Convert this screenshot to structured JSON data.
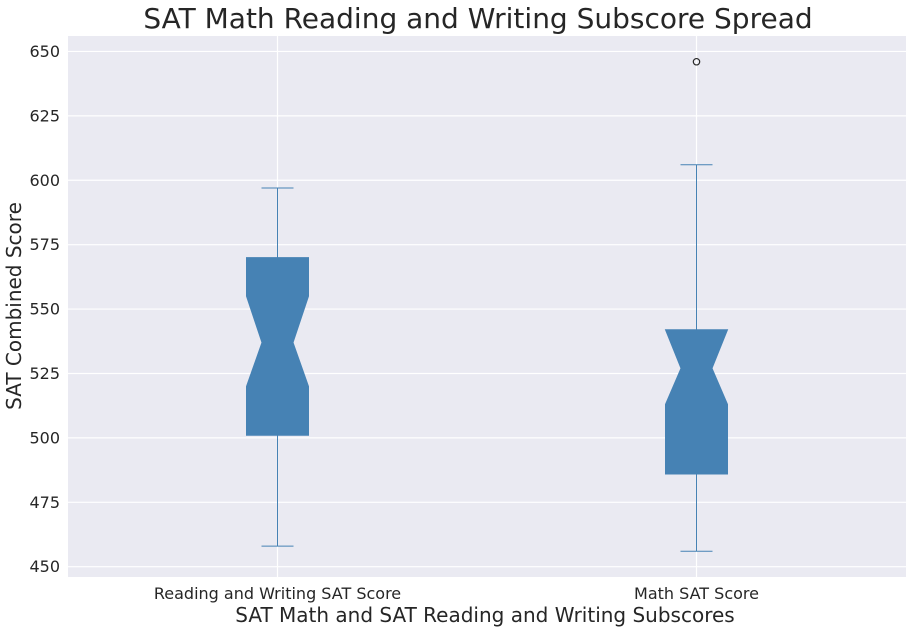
{
  "colors": {
    "plot_background": "#eaeaf2",
    "grid": "#ffffff",
    "box_fill": "#4682b4",
    "box_edge": "#4682b4",
    "whisker": "#4682b4",
    "outlier_edge": "#262626",
    "text": "#262626"
  },
  "chart_data": {
    "type": "boxplot",
    "notched": true,
    "title": "SAT Math Reading and Writing Subscore Spread",
    "xlabel": "SAT Math and SAT Reading and Writing Subscores",
    "ylabel": "SAT Combined Score",
    "ylim": [
      446,
      656
    ],
    "yticks": [
      450,
      475,
      500,
      525,
      550,
      575,
      600,
      625,
      650
    ],
    "ytick_labels": [
      "450",
      "475",
      "500",
      "525",
      "550",
      "575",
      "600",
      "625",
      "650"
    ],
    "grid": true,
    "categories": [
      "Reading and Writing SAT Score",
      "Math SAT Score"
    ],
    "series": [
      {
        "category": "Reading and Writing SAT Score",
        "whisker_low": 458,
        "q1": 501,
        "notch_low": 520,
        "median": 537,
        "notch_high": 555,
        "q3": 570,
        "whisker_high": 597,
        "outliers": []
      },
      {
        "category": "Math SAT Score",
        "whisker_low": 456,
        "q1": 486,
        "notch_low": 513,
        "median": 527,
        "notch_high": 542,
        "q3": 542,
        "whisker_high": 606,
        "outliers": [
          646
        ]
      }
    ]
  }
}
